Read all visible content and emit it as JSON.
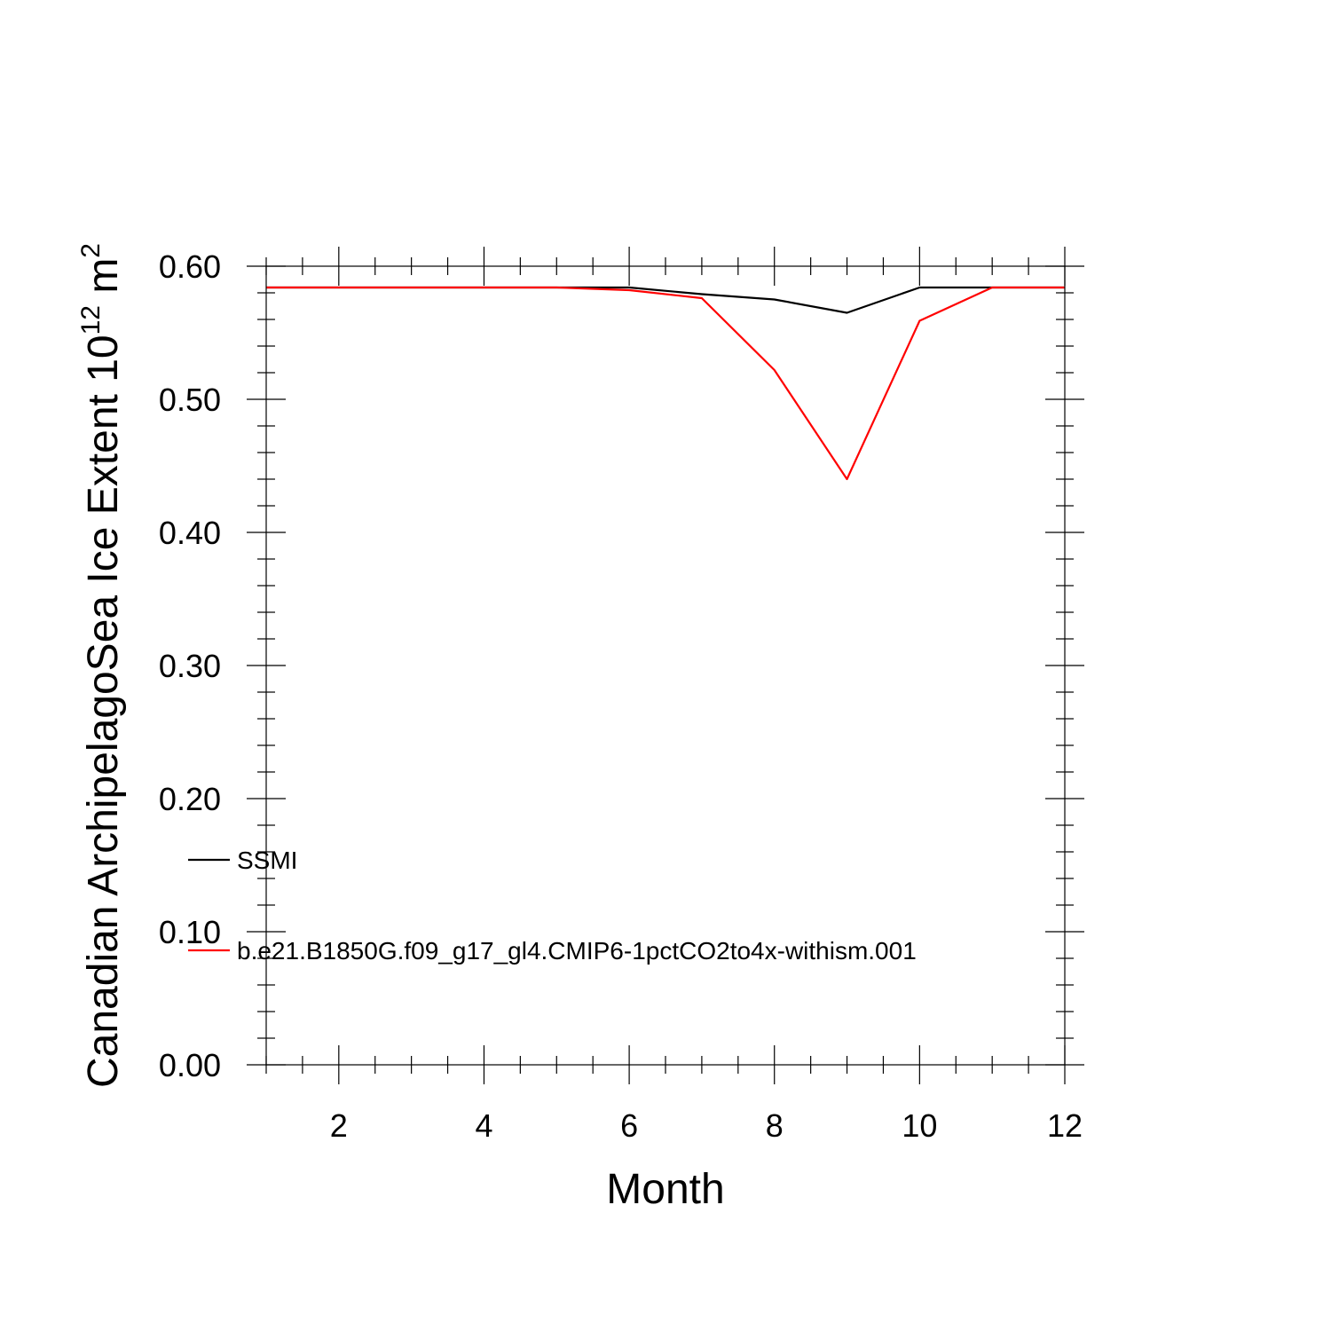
{
  "chart_data": {
    "type": "line",
    "xlabel": "Month",
    "ylabel_main": "Canadian ArchipelagoSea Ice Extent 10",
    "ylabel_sup1": "12",
    "ylabel_mid": " m",
    "ylabel_sup2": "2",
    "xlim": [
      1,
      12
    ],
    "ylim": [
      0.0,
      0.6
    ],
    "x_ticks": [
      2,
      4,
      6,
      8,
      10,
      12
    ],
    "x_tick_labels": [
      "2",
      "4",
      "6",
      "8",
      "10",
      "12"
    ],
    "y_ticks": [
      0.0,
      0.1,
      0.2,
      0.3,
      0.4,
      0.5,
      0.6
    ],
    "y_tick_labels": [
      "0.00",
      "0.10",
      "0.20",
      "0.30",
      "0.40",
      "0.50",
      "0.60"
    ],
    "x": [
      1,
      2,
      3,
      4,
      5,
      6,
      7,
      8,
      9,
      10,
      11,
      12
    ],
    "series": [
      {
        "name": "SSMI",
        "color": "#000000",
        "values": [
          0.584,
          0.584,
          0.584,
          0.584,
          0.584,
          0.584,
          0.579,
          0.575,
          0.565,
          0.584,
          0.584,
          0.584
        ]
      },
      {
        "name": "b.e21.B1850G.f09_g17_gl4.CMIP6-1pctCO2to4x-withism.001",
        "color": "#ff0000",
        "values": [
          0.584,
          0.584,
          0.584,
          0.584,
          0.584,
          0.582,
          0.576,
          0.522,
          0.44,
          0.559,
          0.584,
          0.584
        ]
      }
    ],
    "legend_position": "lower-left",
    "grid": false
  }
}
